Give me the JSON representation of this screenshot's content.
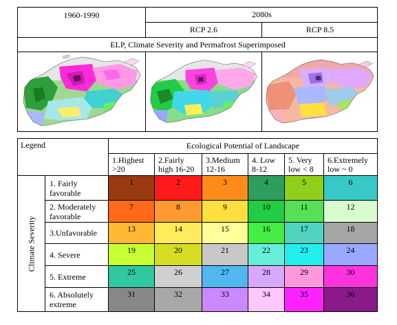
{
  "top_panel": {
    "period_baseline": "1960-1990",
    "period_future": "2080s",
    "scenario_a": "RCP 2.6",
    "scenario_b": "RCP 8.5",
    "caption": "ELP, Climate Severity and Permafrost Superimposed"
  },
  "legend": {
    "corner_label": "Legend",
    "column_group_title": "Ecological Potential of Landscape",
    "row_group_title": "Climate Severity",
    "columns": [
      {
        "line1": "1.Highest",
        "line2": ">20"
      },
      {
        "line1": "2.Fairly",
        "line2": "high 16-20"
      },
      {
        "line1": "3.Medium",
        "line2": "12-16"
      },
      {
        "line1": "4. Low",
        "line2": "8-12"
      },
      {
        "line1": "5. Very",
        "line2": "low < 8"
      },
      {
        "line1": "6.Extremely",
        "line2": "low ~ 0"
      }
    ],
    "rows": [
      {
        "line1": "1. Fairly",
        "line2": "favorable",
        "cells": [
          "1",
          "2",
          "3",
          "4",
          "5",
          "6"
        ]
      },
      {
        "line1": "2. Moderately",
        "line2": "favorable",
        "cells": [
          "7",
          "8",
          "9",
          "10",
          "11",
          "12"
        ]
      },
      {
        "line1": "3.Unfavorable",
        "line2": "",
        "cells": [
          "13",
          "14",
          "15",
          "16",
          "17",
          "18"
        ]
      },
      {
        "line1": "4. Severe",
        "line2": "",
        "cells": [
          "19",
          "20",
          "21",
          "22",
          "23",
          "24"
        ]
      },
      {
        "line1": "5. Extreme",
        "line2": "",
        "cells": [
          "25",
          "26",
          "27",
          "28",
          "29",
          "30"
        ]
      },
      {
        "line1": "6. Absolutely",
        "line2": "extreme",
        "cells": [
          "31",
          "32",
          "33",
          "34",
          "35",
          "36"
        ]
      }
    ],
    "cell_colors": [
      [
        "#9a3a10",
        "#ff1a1a",
        "#ff8c1a",
        "#2e9e5e",
        "#8fcf1a",
        "#38c8c8"
      ],
      [
        "#ff6a1a",
        "#ff9a33",
        "#ffe040",
        "#22cc44",
        "#55e055",
        "#d8fcd0"
      ],
      [
        "#ffb833",
        "#ffec5a",
        "#ffff99",
        "#44ee44",
        "#50d4c0",
        "#a6a6a6"
      ],
      [
        "#c8ff33",
        "#d4dd22",
        "#c8c8c8",
        "#66eed8",
        "#22eeee",
        "#9aa8ff"
      ],
      [
        "#30c8a0",
        "#d0d0d0",
        "#50b8f0",
        "#d8a8ff",
        "#ff99dd",
        "#ff33dd"
      ],
      [
        "#888888",
        "#a8a8a8",
        "#cc88ff",
        "#ffc8ff",
        "#ff22ff",
        "#8a1a8a"
      ]
    ]
  }
}
